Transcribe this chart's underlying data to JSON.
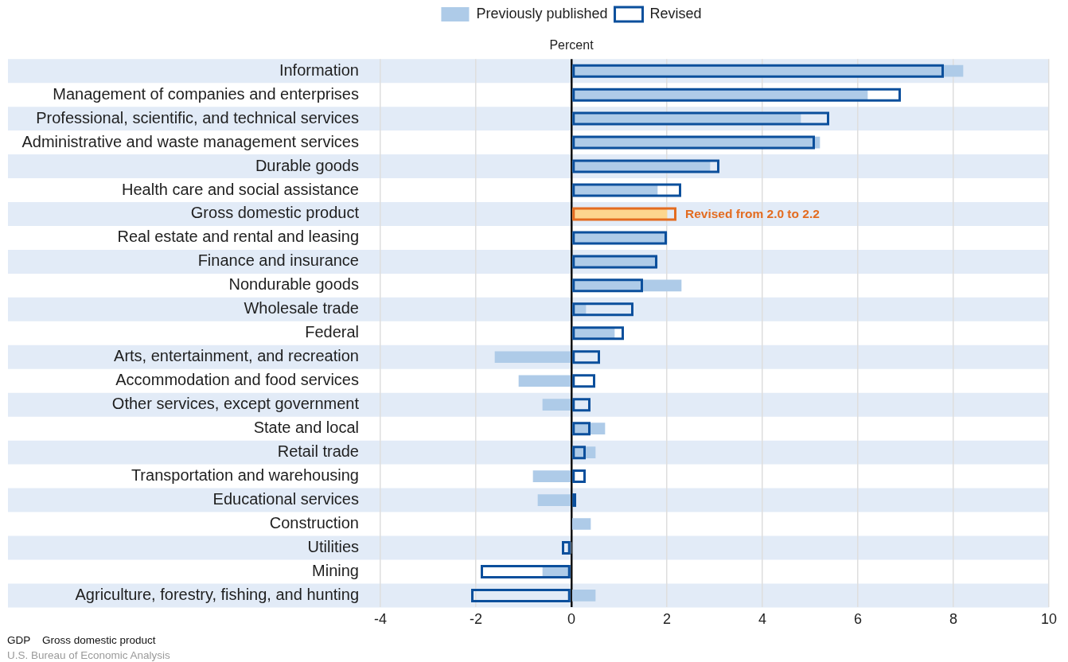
{
  "chart_data": {
    "type": "bar",
    "orientation": "horizontal",
    "xlabel": "Percent",
    "categories": [
      "Information",
      "Management of companies and enterprises",
      "Professional, scientific, and technical services",
      "Administrative and waste management services",
      "Durable goods",
      "Health care and social assistance",
      "Gross domestic product",
      "Real estate and rental and leasing",
      "Finance and insurance",
      "Nondurable goods",
      "Wholesale trade",
      "Federal",
      "Arts, entertainment, and recreation",
      "Accommodation and food services",
      "Other services, except government",
      "State and local",
      "Retail trade",
      "Transportation and warehousing",
      "Educational services",
      "Construction",
      "Utilities",
      "Mining",
      "Agriculture, forestry, fishing, and hunting"
    ],
    "series": [
      {
        "name": "Previously published",
        "color": "#aecbe8",
        "colors": [
          "#aecbe8",
          "#aecbe8",
          "#aecbe8",
          "#aecbe8",
          "#aecbe8",
          "#aecbe8",
          "#fdd68e",
          "#aecbe8",
          "#aecbe8",
          "#aecbe8",
          "#aecbe8",
          "#aecbe8",
          "#aecbe8",
          "#aecbe8",
          "#aecbe8",
          "#aecbe8",
          "#aecbe8",
          "#aecbe8",
          "#aecbe8",
          "#aecbe8",
          "#aecbe8",
          "#aecbe8",
          "#aecbe8"
        ],
        "values": [
          8.2,
          6.2,
          4.8,
          5.2,
          2.9,
          1.8,
          2.0,
          2.0,
          1.8,
          2.3,
          0.3,
          0.9,
          -1.6,
          -1.1,
          -0.6,
          0.7,
          0.5,
          -0.8,
          -0.7,
          0.4,
          0,
          -0.6,
          0.5
        ]
      },
      {
        "name": "Revised",
        "color": "#0b4f9c",
        "colors": [
          "#0b4f9c",
          "#0b4f9c",
          "#0b4f9c",
          "#0b4f9c",
          "#0b4f9c",
          "#0b4f9c",
          "#e36c21",
          "#0b4f9c",
          "#0b4f9c",
          "#0b4f9c",
          "#0b4f9c",
          "#0b4f9c",
          "#0b4f9c",
          "#0b4f9c",
          "#0b4f9c",
          "#0b4f9c",
          "#0b4f9c",
          "#0b4f9c",
          "#0b4f9c",
          "#0b4f9c",
          "#0b4f9c",
          "#0b4f9c",
          "#0b4f9c"
        ],
        "values": [
          7.8,
          6.9,
          5.4,
          5.1,
          3.1,
          2.3,
          2.2,
          2.0,
          1.8,
          1.5,
          1.3,
          1.1,
          0.6,
          0.5,
          0.4,
          0.4,
          0.3,
          0.3,
          0.1,
          0,
          -0.2,
          -1.9,
          -2.1
        ]
      }
    ],
    "xlim": [
      -4,
      10
    ],
    "xticks": [
      -4,
      -2,
      0,
      2,
      4,
      6,
      8,
      10
    ],
    "grid": "x",
    "legend": "top",
    "annotations": [
      {
        "text": "Revised from 2.0 to 2.2",
        "x": 2.2,
        "y": "Gross domestic product"
      },
      "GDP    Gross domestic product",
      "U.S. Bureau of Economic Analysis"
    ]
  }
}
